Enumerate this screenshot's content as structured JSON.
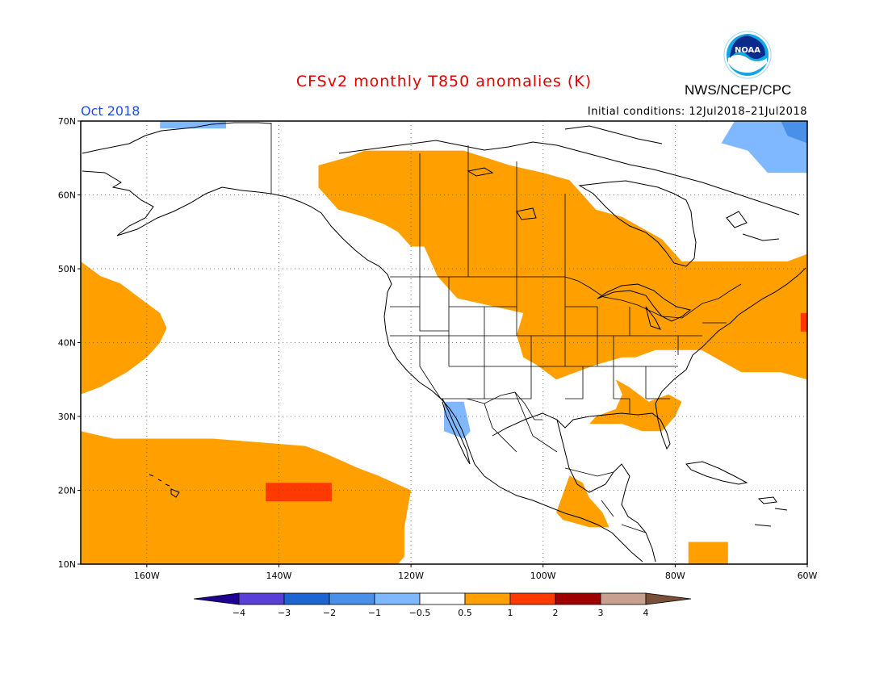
{
  "header": {
    "title": "CFSv2 monthly T850 anomalies (K)",
    "agency": "NWS/NCEP/CPC",
    "logo_text": "NOAA",
    "month": "Oct 2018",
    "initial_conditions": "Initial conditions: 12Jul2018–21Jul2018"
  },
  "map": {
    "lon_range": [
      -170,
      -60
    ],
    "lat_range": [
      10,
      70
    ],
    "lat_ticks": [
      {
        "value": 70,
        "label": "70N"
      },
      {
        "value": 60,
        "label": "60N"
      },
      {
        "value": 50,
        "label": "50N"
      },
      {
        "value": 40,
        "label": "40N"
      },
      {
        "value": 30,
        "label": "30N"
      },
      {
        "value": 20,
        "label": "20N"
      },
      {
        "value": 10,
        "label": "10N"
      }
    ],
    "lon_ticks": [
      {
        "value": -160,
        "label": "160W"
      },
      {
        "value": -140,
        "label": "140W"
      },
      {
        "value": -120,
        "label": "120W"
      },
      {
        "value": -100,
        "label": "100W"
      },
      {
        "value": -80,
        "label": "80W"
      },
      {
        "value": -60,
        "label": "60W"
      }
    ],
    "anomaly_regions": [
      {
        "name": "canada-warm",
        "level": "0.5-1",
        "color": "#ffa000",
        "poly": [
          [
            -127,
            66
          ],
          [
            -112,
            66
          ],
          [
            -105,
            64
          ],
          [
            -100,
            63
          ],
          [
            -96,
            62
          ],
          [
            -95,
            61
          ],
          [
            -92,
            58
          ],
          [
            -88,
            57
          ],
          [
            -84,
            55
          ],
          [
            -82,
            54
          ],
          [
            -79,
            51
          ],
          [
            -72,
            51
          ],
          [
            -63,
            51
          ],
          [
            -60,
            52
          ],
          [
            -60,
            35
          ],
          [
            -64,
            36
          ],
          [
            -70,
            36
          ],
          [
            -72,
            37
          ],
          [
            -76,
            39
          ],
          [
            -80,
            39
          ],
          [
            -83,
            39
          ],
          [
            -86,
            38
          ],
          [
            -88,
            38
          ],
          [
            -92,
            37
          ],
          [
            -95,
            36
          ],
          [
            -98,
            35
          ],
          [
            -101,
            37
          ],
          [
            -103,
            38
          ],
          [
            -104,
            41
          ],
          [
            -103,
            44
          ],
          [
            -108,
            45
          ],
          [
            -113,
            46
          ],
          [
            -116,
            49
          ],
          [
            -117,
            51
          ],
          [
            -118,
            53
          ],
          [
            -120,
            53
          ],
          [
            -122,
            55
          ],
          [
            -124,
            56
          ],
          [
            -127,
            57
          ],
          [
            -131,
            58
          ],
          [
            -132,
            59
          ],
          [
            -134,
            61
          ],
          [
            -134,
            64
          ],
          [
            -130,
            65
          ]
        ]
      },
      {
        "name": "southeast-warm",
        "level": "0.5-1",
        "color": "#ffa000",
        "poly": [
          [
            -89,
            35
          ],
          [
            -88,
            33
          ],
          [
            -89,
            31
          ],
          [
            -92,
            30
          ],
          [
            -93,
            29
          ],
          [
            -88,
            29
          ],
          [
            -85,
            28
          ],
          [
            -82,
            28
          ],
          [
            -80,
            30
          ],
          [
            -79,
            32
          ],
          [
            -81,
            33
          ],
          [
            -84,
            32
          ],
          [
            -87,
            34
          ]
        ]
      },
      {
        "name": "pacific-north-warm",
        "level": "0.5-1",
        "color": "#ffa000",
        "poly": [
          [
            -170,
            51
          ],
          [
            -167,
            49
          ],
          [
            -164,
            48
          ],
          [
            -161,
            46
          ],
          [
            -158,
            44
          ],
          [
            -157,
            42
          ],
          [
            -158,
            40
          ],
          [
            -160,
            38
          ],
          [
            -163,
            36
          ],
          [
            -167,
            34
          ],
          [
            -170,
            33
          ]
        ]
      },
      {
        "name": "pacific-subtropical-warm",
        "level": "0.5-1",
        "color": "#ffa000",
        "poly": [
          [
            -170,
            28
          ],
          [
            -165,
            27
          ],
          [
            -150,
            27
          ],
          [
            -136,
            26
          ],
          [
            -133,
            25
          ],
          [
            -128,
            23
          ],
          [
            -125,
            22
          ],
          [
            -120,
            20
          ],
          [
            -121,
            15
          ],
          [
            -121,
            11
          ],
          [
            -122,
            10
          ],
          [
            -170,
            10
          ]
        ]
      },
      {
        "name": "central-america-warm",
        "level": "0.5-1",
        "color": "#ffa000",
        "poly": [
          [
            -96,
            22
          ],
          [
            -94,
            21
          ],
          [
            -93,
            19
          ],
          [
            -91,
            17
          ],
          [
            -90,
            15
          ],
          [
            -93,
            15
          ],
          [
            -97,
            16
          ],
          [
            -98,
            17
          ]
        ]
      },
      {
        "name": "caribbean-warm",
        "level": "0.5-1",
        "color": "#ffa000",
        "poly": [
          [
            -78,
            13
          ],
          [
            -72,
            13
          ],
          [
            -72,
            10
          ],
          [
            -78,
            10
          ]
        ]
      },
      {
        "name": "pacific-hot-spot",
        "level": "1-2",
        "color": "#ff3a00",
        "poly": [
          [
            -142,
            21
          ],
          [
            -132,
            21
          ],
          [
            -132,
            18.5
          ],
          [
            -142,
            18.5
          ]
        ]
      },
      {
        "name": "atlantic-hot-spot",
        "level": "1-2",
        "color": "#ff3a00",
        "poly": [
          [
            -60,
            41.5
          ],
          [
            -61,
            41.5
          ],
          [
            -61,
            44
          ],
          [
            -60,
            44
          ]
        ]
      },
      {
        "name": "alaska-cool",
        "level": "-1--0.5",
        "color": "#80b8ff",
        "poly": [
          [
            -158,
            69
          ],
          [
            -148,
            69
          ],
          [
            -148,
            70
          ],
          [
            -158,
            70
          ]
        ]
      },
      {
        "name": "mexico-cool",
        "level": "-1--0.5",
        "color": "#80b8ff",
        "poly": [
          [
            -115,
            32
          ],
          [
            -112,
            32
          ],
          [
            -111,
            28
          ],
          [
            -112,
            27
          ],
          [
            -115,
            28
          ]
        ]
      },
      {
        "name": "greenland-cool",
        "level": "-1--0.5",
        "color": "#80b8ff",
        "poly": [
          [
            -71,
            70
          ],
          [
            -60,
            70
          ],
          [
            -60,
            63
          ],
          [
            -66,
            63
          ],
          [
            -69,
            66
          ],
          [
            -73,
            67
          ]
        ]
      },
      {
        "name": "greenland-colder",
        "level": "-2--1",
        "color": "#4a90e8",
        "poly": [
          [
            -64,
            70
          ],
          [
            -60,
            70
          ],
          [
            -60,
            67
          ],
          [
            -63,
            68
          ]
        ]
      }
    ]
  },
  "colorbar": {
    "colors": [
      "#200090",
      "#5a3ed8",
      "#1e64d2",
      "#4a90e8",
      "#80b8ff",
      "#ffffff",
      "#ffa000",
      "#ff3a00",
      "#a00000",
      "#c8a090",
      "#7a5038"
    ],
    "labels": [
      "−4",
      "−3",
      "−2",
      "−1",
      "−0.5",
      "0.5",
      "1",
      "2",
      "3",
      "4"
    ]
  }
}
